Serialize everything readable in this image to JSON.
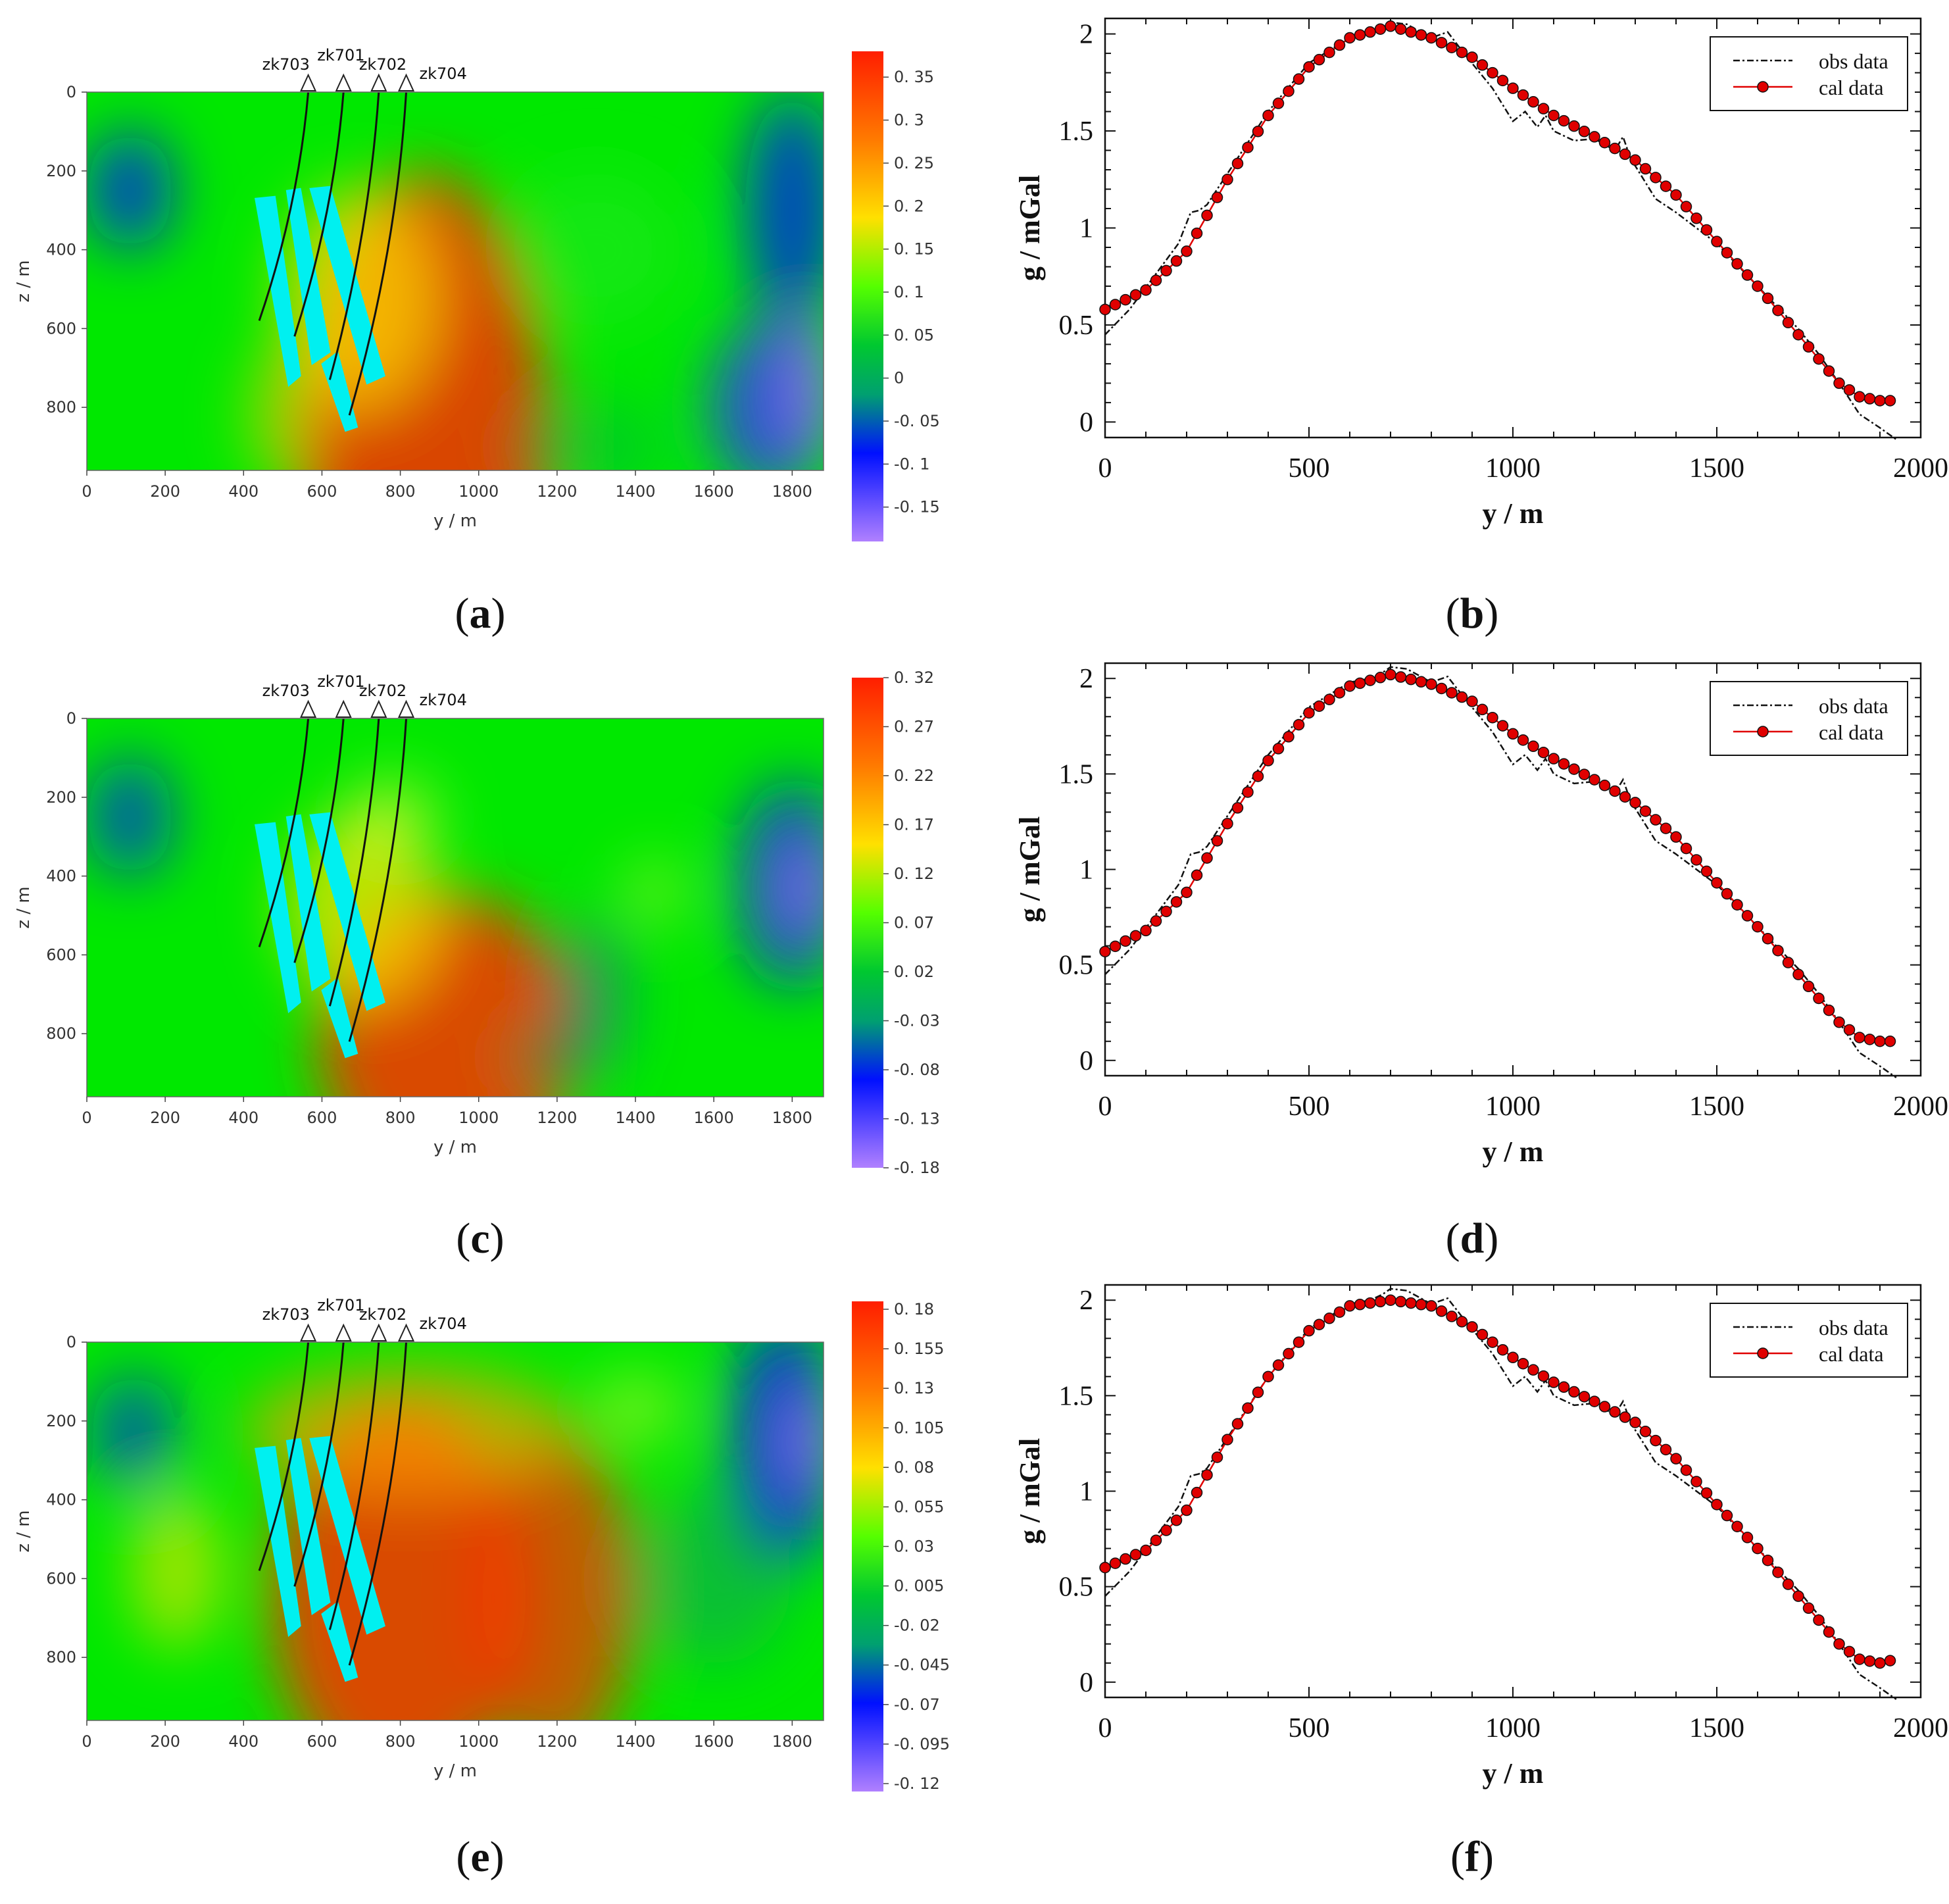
{
  "figure": {
    "captions": [
      {
        "open": "(",
        "letter": "a",
        "close": ")"
      },
      {
        "open": "(",
        "letter": "b",
        "close": ")"
      },
      {
        "open": "(",
        "letter": "c",
        "close": ")"
      },
      {
        "open": "(",
        "letter": "d",
        "close": ")"
      },
      {
        "open": "(",
        "letter": "e",
        "close": ")"
      },
      {
        "open": "(",
        "letter": "f",
        "close": ")"
      }
    ]
  },
  "chart_data": [
    {
      "type": "heatmap",
      "panel": "a",
      "xlabel": "y / m",
      "ylabel": "z / m",
      "xlim": [
        0,
        1880
      ],
      "ylim": [
        960,
        0
      ],
      "xticks": [
        "0",
        "200",
        "400",
        "600",
        "800",
        "1000",
        "1200",
        "1400",
        "1600",
        "1800"
      ],
      "yticks": [
        "0",
        "200",
        "400",
        "600",
        "800"
      ],
      "colorbar": {
        "labels": [
          "0. 35",
          "0. 3",
          "0. 25",
          "0. 2",
          "0. 15",
          "0. 1",
          "0. 05",
          "0",
          "-0. 05",
          "-0. 1",
          "-0. 15"
        ],
        "min": -0.19,
        "max": 0.38
      },
      "boreholes": [
        "zk703",
        "zk701",
        "zk702",
        "zk704"
      ],
      "colors": {
        "high": "#ff2a00",
        "mid": "#00e800",
        "low": "#0010ff",
        "min": "#a070ff",
        "orebody": "#00f0f0"
      }
    },
    {
      "type": "line",
      "panel": "b",
      "xlabel": "y / m",
      "ylabel": "g / mGal",
      "xlim": [
        0,
        2000
      ],
      "ylim": [
        -0.08,
        2.08
      ],
      "xticks": [
        "0",
        "500",
        "1000",
        "1500",
        "2000"
      ],
      "yticks": [
        "0",
        "0.5",
        "1",
        "1.5",
        "2"
      ],
      "legend": [
        "obs data",
        "cal data"
      ],
      "series": [
        {
          "name": "obs data",
          "x": [
            0,
            60,
            120,
            180,
            210,
            230,
            250,
            300,
            400,
            500,
            600,
            650,
            680,
            700,
            740,
            800,
            840,
            880,
            950,
            1000,
            1030,
            1060,
            1080,
            1100,
            1150,
            1200,
            1250,
            1270,
            1290,
            1300,
            1350,
            1400,
            1500,
            1600,
            1700,
            1750,
            1800,
            1850,
            1900,
            1920,
            1940
          ],
          "y": [
            0.45,
            0.58,
            0.75,
            0.92,
            1.08,
            1.09,
            1.12,
            1.28,
            1.6,
            1.85,
            1.98,
            2.0,
            2.03,
            2.06,
            2.05,
            1.98,
            2.01,
            1.9,
            1.72,
            1.55,
            1.6,
            1.52,
            1.58,
            1.5,
            1.45,
            1.46,
            1.4,
            1.47,
            1.35,
            1.32,
            1.15,
            1.08,
            0.92,
            0.7,
            0.48,
            0.35,
            0.2,
            0.04,
            -0.03,
            -0.06,
            -0.09
          ]
        },
        {
          "name": "cal data",
          "x": [
            0,
            100,
            200,
            300,
            400,
            500,
            600,
            700,
            800,
            900,
            1000,
            1100,
            1200,
            1300,
            1400,
            1500,
            1600,
            1700,
            1800,
            1850,
            1900,
            1940
          ],
          "y": [
            0.58,
            0.68,
            0.88,
            1.25,
            1.58,
            1.83,
            1.98,
            2.04,
            1.98,
            1.88,
            1.72,
            1.58,
            1.47,
            1.35,
            1.17,
            0.93,
            0.7,
            0.45,
            0.2,
            0.13,
            0.11,
            0.11
          ]
        }
      ]
    },
    {
      "type": "heatmap",
      "panel": "c",
      "xlabel": "y / m",
      "ylabel": "z / m",
      "xlim": [
        0,
        1880
      ],
      "ylim": [
        960,
        0
      ],
      "xticks": [
        "0",
        "200",
        "400",
        "600",
        "800",
        "1000",
        "1200",
        "1400",
        "1600",
        "1800"
      ],
      "yticks": [
        "0",
        "200",
        "400",
        "600",
        "800"
      ],
      "colorbar": {
        "labels": [
          "0. 32",
          "0. 27",
          "0. 22",
          "0. 17",
          "0. 12",
          "0. 07",
          "0. 02",
          "-0. 03",
          "-0. 08",
          "-0. 13",
          "-0. 18"
        ],
        "min": -0.18,
        "max": 0.32
      },
      "boreholes": [
        "zk703",
        "zk701",
        "zk702",
        "zk704"
      ],
      "colors": {
        "high": "#ff2a00",
        "mid": "#00e800",
        "low": "#0010ff",
        "min": "#a070ff",
        "orebody": "#00f0f0"
      }
    },
    {
      "type": "line",
      "panel": "d",
      "xlabel": "y / m",
      "ylabel": "g / mGal",
      "xlim": [
        0,
        2000
      ],
      "ylim": [
        -0.08,
        2.08
      ],
      "xticks": [
        "0",
        "500",
        "1000",
        "1500",
        "2000"
      ],
      "yticks": [
        "0",
        "0.5",
        "1",
        "1.5",
        "2"
      ],
      "legend": [
        "obs data",
        "cal data"
      ],
      "series": [
        {
          "name": "obs data",
          "x": [
            0,
            60,
            120,
            180,
            210,
            230,
            250,
            300,
            400,
            500,
            600,
            650,
            680,
            700,
            740,
            800,
            840,
            880,
            950,
            1000,
            1030,
            1060,
            1080,
            1100,
            1150,
            1200,
            1250,
            1270,
            1290,
            1300,
            1350,
            1400,
            1500,
            1600,
            1700,
            1750,
            1800,
            1850,
            1900,
            1920,
            1940
          ],
          "y": [
            0.45,
            0.58,
            0.75,
            0.92,
            1.08,
            1.09,
            1.12,
            1.28,
            1.6,
            1.85,
            1.98,
            2.0,
            2.03,
            2.06,
            2.05,
            1.98,
            2.01,
            1.9,
            1.72,
            1.55,
            1.6,
            1.52,
            1.58,
            1.5,
            1.45,
            1.46,
            1.4,
            1.47,
            1.35,
            1.32,
            1.15,
            1.08,
            0.92,
            0.7,
            0.48,
            0.35,
            0.2,
            0.04,
            -0.03,
            -0.06,
            -0.09
          ]
        },
        {
          "name": "cal data",
          "x": [
            0,
            100,
            200,
            300,
            400,
            500,
            600,
            700,
            800,
            900,
            1000,
            1100,
            1200,
            1300,
            1400,
            1500,
            1600,
            1700,
            1800,
            1850,
            1900,
            1940
          ],
          "y": [
            0.57,
            0.68,
            0.88,
            1.24,
            1.57,
            1.82,
            1.96,
            2.02,
            1.97,
            1.88,
            1.71,
            1.58,
            1.47,
            1.35,
            1.17,
            0.93,
            0.7,
            0.45,
            0.2,
            0.12,
            0.1,
            0.1
          ]
        }
      ]
    },
    {
      "type": "heatmap",
      "panel": "e",
      "xlabel": "y / m",
      "ylabel": "z / m",
      "xlim": [
        0,
        1880
      ],
      "ylim": [
        960,
        0
      ],
      "xticks": [
        "0",
        "200",
        "400",
        "600",
        "800",
        "1000",
        "1200",
        "1400",
        "1600",
        "1800"
      ],
      "yticks": [
        "0",
        "200",
        "400",
        "600",
        "800"
      ],
      "colorbar": {
        "labels": [
          "0. 18",
          "0. 155",
          "0. 13",
          "0. 105",
          "0. 08",
          "0. 055",
          "0. 03",
          "0. 005",
          "-0. 02",
          "-0. 045",
          "-0. 07",
          "-0. 095",
          "-0. 12"
        ],
        "min": -0.125,
        "max": 0.185
      },
      "boreholes": [
        "zk703",
        "zk701",
        "zk702",
        "zk704"
      ],
      "colors": {
        "high": "#ff2a00",
        "mid": "#00e800",
        "low": "#0010ff",
        "min": "#a070ff",
        "orebody": "#00f0f0"
      }
    },
    {
      "type": "line",
      "panel": "f",
      "xlabel": "y / m",
      "ylabel": "g / mGal",
      "xlim": [
        0,
        2000
      ],
      "ylim": [
        -0.08,
        2.08
      ],
      "xticks": [
        "0",
        "500",
        "1000",
        "1500",
        "2000"
      ],
      "yticks": [
        "0",
        "0.5",
        "1",
        "1.5",
        "2"
      ],
      "legend": [
        "obs data",
        "cal data"
      ],
      "series": [
        {
          "name": "obs data",
          "x": [
            0,
            60,
            120,
            180,
            210,
            230,
            250,
            300,
            400,
            500,
            600,
            650,
            680,
            700,
            740,
            800,
            840,
            880,
            950,
            1000,
            1030,
            1060,
            1080,
            1100,
            1150,
            1200,
            1250,
            1270,
            1290,
            1300,
            1350,
            1400,
            1500,
            1600,
            1700,
            1750,
            1800,
            1850,
            1900,
            1920,
            1940
          ],
          "y": [
            0.45,
            0.58,
            0.75,
            0.92,
            1.08,
            1.09,
            1.12,
            1.28,
            1.6,
            1.85,
            1.98,
            2.0,
            2.03,
            2.06,
            2.05,
            1.98,
            2.01,
            1.9,
            1.72,
            1.55,
            1.6,
            1.52,
            1.58,
            1.5,
            1.45,
            1.46,
            1.4,
            1.47,
            1.35,
            1.32,
            1.15,
            1.08,
            0.92,
            0.7,
            0.48,
            0.35,
            0.2,
            0.04,
            -0.03,
            -0.06,
            -0.09
          ]
        },
        {
          "name": "cal data",
          "x": [
            0,
            100,
            200,
            300,
            400,
            500,
            600,
            700,
            800,
            900,
            1000,
            1100,
            1200,
            1300,
            1400,
            1500,
            1600,
            1700,
            1800,
            1850,
            1900,
            1940
          ],
          "y": [
            0.6,
            0.69,
            0.9,
            1.27,
            1.6,
            1.84,
            1.97,
            2.0,
            1.97,
            1.86,
            1.7,
            1.57,
            1.47,
            1.36,
            1.17,
            0.93,
            0.7,
            0.45,
            0.2,
            0.12,
            0.1,
            0.12
          ]
        }
      ]
    }
  ]
}
